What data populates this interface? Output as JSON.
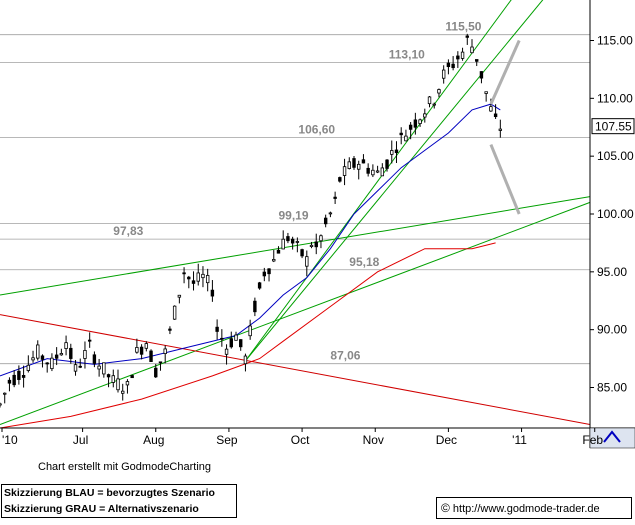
{
  "chart_data": {
    "type": "candlestick",
    "title": "",
    "footer": "Chart erstellt mit GodmodeCharting",
    "legend": [
      "Skizzierung BLAU = bevorzugtes Szenario",
      "Skizzierung GRAU = Alternativszenario"
    ],
    "source": {
      "copyright": "©",
      "url": "http://www.godmode-trader.de"
    },
    "x_tick_labels": [
      "'10",
      "Jul",
      "Aug",
      "Sep",
      "Oct",
      "Nov",
      "Dec",
      "'11",
      "Feb"
    ],
    "y_tick_labels": [
      "85.00",
      "90.00",
      "95.00",
      "100.00",
      "105.00",
      "110.00",
      "115.00"
    ],
    "ylim": [
      81.5,
      118.5
    ],
    "last_price": "107.55",
    "price_path": [
      [
        0,
        83.5
      ],
      [
        2,
        85.5
      ],
      [
        5,
        86.5
      ],
      [
        8,
        88
      ],
      [
        11,
        87
      ],
      [
        14,
        89
      ],
      [
        16,
        86.5
      ],
      [
        19,
        88.5
      ],
      [
        21,
        87
      ],
      [
        24,
        85.5
      ],
      [
        27,
        85
      ],
      [
        29,
        88
      ],
      [
        31,
        89
      ],
      [
        33,
        86.5
      ],
      [
        35,
        88
      ],
      [
        37,
        91.5
      ],
      [
        39,
        95
      ],
      [
        41,
        94
      ],
      [
        43,
        94.5
      ],
      [
        45,
        93.5
      ],
      [
        46,
        90
      ],
      [
        48,
        88.5
      ],
      [
        50,
        89.5
      ],
      [
        52,
        87.5
      ],
      [
        54,
        92
      ],
      [
        56,
        95
      ],
      [
        58,
        96
      ],
      [
        59,
        97
      ],
      [
        61,
        98
      ],
      [
        63,
        97
      ],
      [
        65,
        96
      ],
      [
        66,
        97.5
      ],
      [
        67,
        97
      ],
      [
        69,
        99
      ],
      [
        71,
        101
      ],
      [
        72,
        103
      ],
      [
        74,
        104
      ],
      [
        76,
        104.5
      ],
      [
        78,
        104
      ],
      [
        80,
        103.5
      ],
      [
        82,
        104.5
      ],
      [
        84,
        106
      ],
      [
        86,
        107
      ],
      [
        88,
        108
      ],
      [
        90,
        109
      ],
      [
        92,
        110
      ],
      [
        94,
        112
      ],
      [
        96,
        113
      ],
      [
        98,
        114
      ],
      [
        99,
        115
      ],
      [
        100,
        114.5
      ],
      [
        101,
        113.5
      ],
      [
        102,
        112
      ],
      [
        103,
        110.5
      ],
      [
        104,
        109
      ],
      [
        105,
        108
      ],
      [
        106,
        107.5
      ]
    ],
    "moving_averages": [
      {
        "color": "#0000c0",
        "points": [
          [
            0,
            86
          ],
          [
            10,
            87.5
          ],
          [
            20,
            87
          ],
          [
            30,
            87.5
          ],
          [
            40,
            88.5
          ],
          [
            50,
            89.5
          ],
          [
            55,
            91
          ],
          [
            60,
            93
          ],
          [
            65,
            94.5
          ],
          [
            70,
            97
          ],
          [
            75,
            100
          ],
          [
            80,
            102
          ],
          [
            85,
            104
          ],
          [
            90,
            105.5
          ],
          [
            95,
            107
          ],
          [
            100,
            109
          ],
          [
            104,
            109.5
          ],
          [
            106,
            109
          ]
        ]
      },
      {
        "color": "#e00000",
        "points": [
          [
            0,
            81.5
          ],
          [
            15,
            82.5
          ],
          [
            30,
            84
          ],
          [
            45,
            86
          ],
          [
            55,
            87.5
          ],
          [
            60,
            89
          ],
          [
            70,
            92
          ],
          [
            80,
            95
          ],
          [
            90,
            97
          ],
          [
            100,
            97
          ],
          [
            105,
            97.5
          ]
        ]
      }
    ],
    "trendlines": [
      {
        "color": "#00a000",
        "points": [
          [
            0,
            93
          ],
          [
            125,
            101.5
          ]
        ]
      },
      {
        "color": "#00a000",
        "points": [
          [
            0,
            81.8
          ],
          [
            125,
            101
          ]
        ]
      },
      {
        "color": "#00a000",
        "points": [
          [
            52,
            87.3
          ],
          [
            111,
            120
          ]
        ]
      },
      {
        "color": "#00a000",
        "points": [
          [
            52,
            87.3
          ],
          [
            118,
            120
          ]
        ]
      },
      {
        "color": "#d00000",
        "points": [
          [
            0,
            91.3
          ],
          [
            125,
            81.8
          ]
        ]
      }
    ],
    "horizontal_levels": [
      {
        "value": 97.83,
        "label": "97,83"
      },
      {
        "value": 99.19,
        "label": "99,19"
      },
      {
        "value": 95.18,
        "label": "95,18"
      },
      {
        "value": 87.06,
        "label": "87,06"
      },
      {
        "value": 106.6,
        "label": "106,60"
      },
      {
        "value": 113.1,
        "label": "113,10"
      },
      {
        "value": 115.5,
        "label": "115,50"
      }
    ],
    "scenario_grey": [
      {
        "points": [
          [
            104,
            109.5
          ],
          [
            110,
            115
          ]
        ]
      },
      {
        "points": [
          [
            104,
            106
          ],
          [
            110,
            100
          ]
        ]
      }
    ]
  }
}
